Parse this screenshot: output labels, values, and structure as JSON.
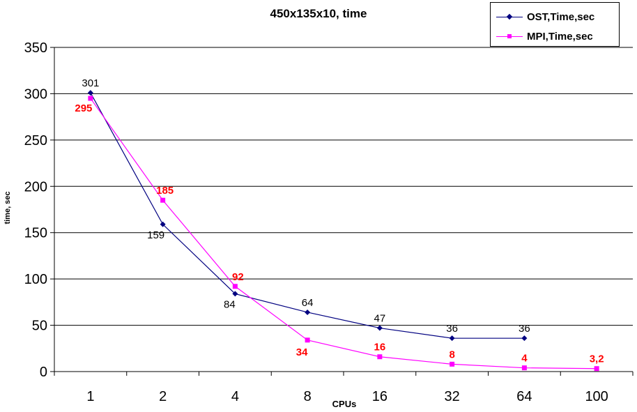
{
  "chart_data": {
    "type": "line",
    "title": "450x135x10, time",
    "xlabel": "CPUs",
    "ylabel": "time, sec",
    "categories": [
      "1",
      "2",
      "4",
      "8",
      "16",
      "32",
      "64",
      "100"
    ],
    "ylim": [
      0,
      350
    ],
    "yticks": [
      "0",
      "50",
      "100",
      "150",
      "200",
      "250",
      "300",
      "350"
    ],
    "grid": true,
    "legend_position": "top-right",
    "series": [
      {
        "name": "OST,Time,sec",
        "color": "#000080",
        "marker": "diamond",
        "values": [
          301,
          159,
          84,
          64,
          47,
          36,
          36,
          null
        ],
        "data_labels": [
          "301",
          "159",
          "84",
          "64",
          "47",
          "36",
          "36",
          ""
        ],
        "label_color": "#000000"
      },
      {
        "name": "MPI,Time,sec",
        "color": "#ff00ff",
        "marker": "square",
        "values": [
          295,
          185,
          92,
          34,
          16,
          8,
          4,
          3.2
        ],
        "data_labels": [
          "295",
          "185",
          "92",
          "34",
          "16",
          "8",
          "4",
          "3,2"
        ],
        "label_color": "#ff0000"
      }
    ]
  }
}
